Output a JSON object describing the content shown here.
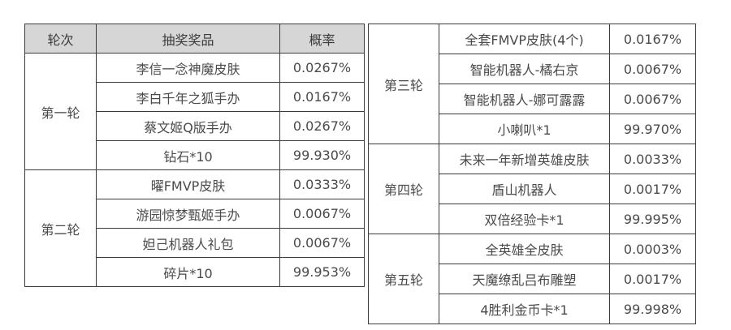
{
  "left_table": {
    "headers": [
      "轮次",
      "抽奖奖品",
      "概率"
    ],
    "groups": [
      {
        "round": "第一轮",
        "items": [
          {
            "prize": "李信一念神魔皮肤",
            "prob": "0.0267%"
          },
          {
            "prize": "李白千年之狐手办",
            "prob": "0.0167%"
          },
          {
            "prize": "蔡文姬Q版手办",
            "prob": "0.0267%"
          },
          {
            "prize": "钻石*10",
            "prob": "99.930%"
          }
        ]
      },
      {
        "round": "第二轮",
        "items": [
          {
            "prize": "曜FMVP皮肤",
            "prob": "0.0333%"
          },
          {
            "prize": "游园惊梦甄姬手办",
            "prob": "0.0067%"
          },
          {
            "prize": "妲己机器人礼包",
            "prob": "0.0067%"
          },
          {
            "prize": "碎片*10",
            "prob": "99.953%"
          }
        ]
      }
    ]
  },
  "right_table": {
    "groups": [
      {
        "round": "第三轮",
        "items": [
          {
            "prize": "全套FMVP皮肤(4个)",
            "prob": "0.0167%"
          },
          {
            "prize": "智能机器人-橘右京",
            "prob": "0.0067%"
          },
          {
            "prize": "智能机器人-娜可露露",
            "prob": "0.0067%"
          },
          {
            "prize": "小喇叭*1",
            "prob": "99.970%"
          }
        ]
      },
      {
        "round": "第四轮",
        "items": [
          {
            "prize": "未来一年新增英雄皮肤",
            "prob": "0.0033%"
          },
          {
            "prize": "盾山机器人",
            "prob": "0.0017%"
          },
          {
            "prize": "双倍经验卡*1",
            "prob": "99.995%"
          }
        ]
      },
      {
        "round": "第五轮",
        "items": [
          {
            "prize": "全英雄全皮肤",
            "prob": "0.0003%"
          },
          {
            "prize": "天魔缭乱吕布雕塑",
            "prob": "0.0017%"
          },
          {
            "prize": "4胜利金币卡*1",
            "prob": "99.998%"
          }
        ]
      }
    ]
  }
}
